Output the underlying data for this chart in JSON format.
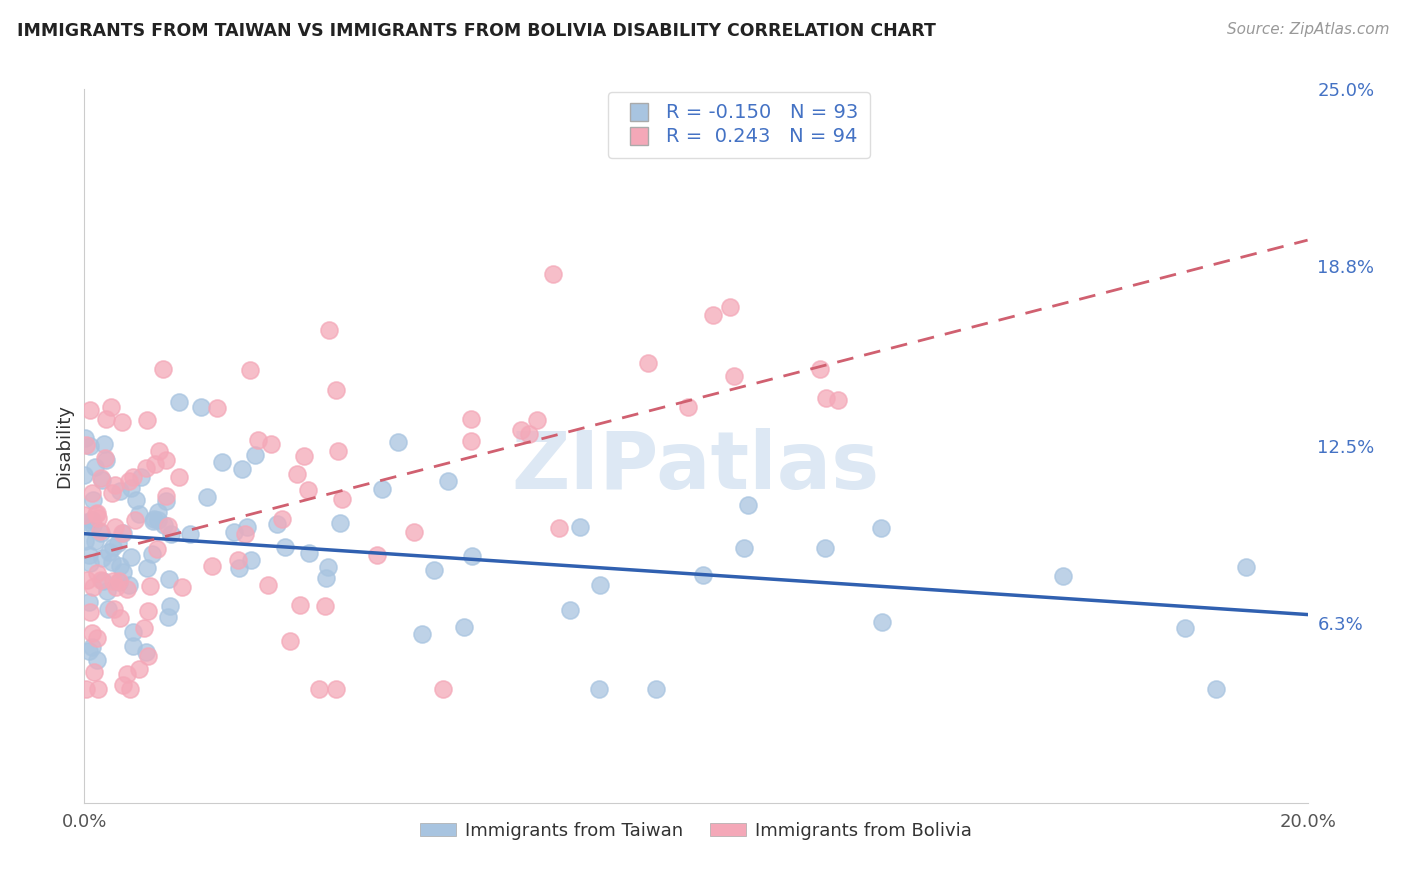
{
  "title": "IMMIGRANTS FROM TAIWAN VS IMMIGRANTS FROM BOLIVIA DISABILITY CORRELATION CHART",
  "source": "Source: ZipAtlas.com",
  "ylabel_label": "Disability",
  "watermark": "ZIPatlas",
  "taiwan_R": -0.15,
  "taiwan_N": 93,
  "bolivia_R": 0.243,
  "bolivia_N": 94,
  "taiwan_color": "#a8c4e0",
  "bolivia_color": "#f4a8b8",
  "taiwan_line_color": "#3060b0",
  "bolivia_line_color": "#d06070",
  "taiwan_label": "Immigrants from Taiwan",
  "bolivia_label": "Immigrants from Bolivia",
  "x_min": 0.0,
  "x_max": 0.2,
  "y_min": 0.0,
  "y_max": 0.25,
  "y_ticks_right": [
    0.063,
    0.125,
    0.188,
    0.25
  ],
  "y_tick_labels_right": [
    "6.3%",
    "12.5%",
    "18.8%",
    "25.0%"
  ],
  "taiwan_intercept": 0.093,
  "taiwan_slope": -0.12,
  "bolivia_intercept": 0.082,
  "bolivia_slope": 0.5
}
